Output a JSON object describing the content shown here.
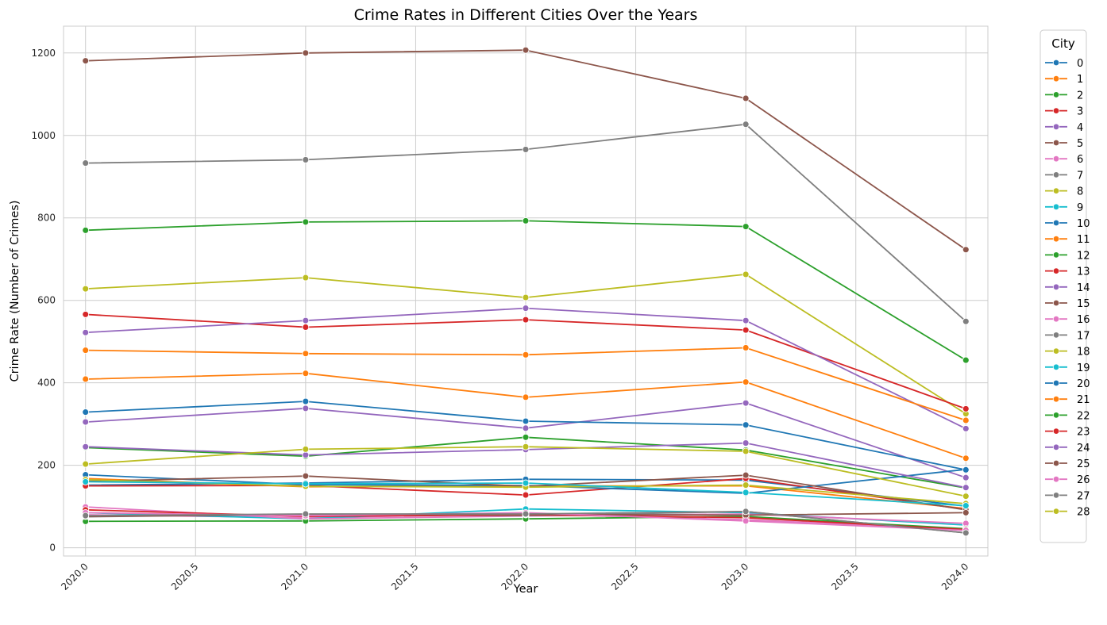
{
  "chart_data": {
    "type": "line",
    "title": "Crime Rates in Different Cities Over the Years",
    "xlabel": "Year",
    "ylabel": "Crime Rate (Number of Crimes)",
    "x": [
      2020,
      2021,
      2022,
      2023,
      2024
    ],
    "xlim": [
      2019.9,
      2024.1
    ],
    "ylim": [
      -20,
      1265
    ],
    "xticks": [
      2020.0,
      2020.5,
      2021.0,
      2021.5,
      2022.0,
      2022.5,
      2023.0,
      2023.5,
      2024.0
    ],
    "xtick_labels": [
      "2020.0",
      "2020.5",
      "2021.0",
      "2021.5",
      "2022.0",
      "2022.5",
      "2023.0",
      "2023.5",
      "2024.0"
    ],
    "yticks": [
      0,
      200,
      400,
      600,
      800,
      1000,
      1200
    ],
    "ytick_labels": [
      "0",
      "200",
      "400",
      "600",
      "800",
      "1000",
      "1200"
    ],
    "grid": true,
    "legend": {
      "title": "City",
      "placement": "outside-right"
    },
    "series": [
      {
        "name": "0",
        "color": "#1f77b4",
        "values": [
          152,
          157,
          166,
          164,
          101
        ]
      },
      {
        "name": "1",
        "color": "#ff7f0e",
        "values": [
          168,
          148,
          150,
          150,
          95
        ]
      },
      {
        "name": "2",
        "color": "#2ca02c",
        "values": [
          243,
          222,
          268,
          237,
          145
        ]
      },
      {
        "name": "3",
        "color": "#d62728",
        "values": [
          150,
          151,
          128,
          168,
          93
        ]
      },
      {
        "name": "4",
        "color": "#9467bd",
        "values": [
          305,
          338,
          290,
          351,
          170
        ]
      },
      {
        "name": "5",
        "color": "#8c564b",
        "values": [
          1181,
          1200,
          1207,
          1090,
          723
        ]
      },
      {
        "name": "6",
        "color": "#e377c2",
        "values": [
          80,
          73,
          82,
          68,
          45
        ]
      },
      {
        "name": "7",
        "color": "#7f7f7f",
        "values": [
          933,
          941,
          966,
          1027,
          549
        ]
      },
      {
        "name": "8",
        "color": "#bcbd22",
        "values": [
          628,
          655,
          607,
          663,
          325
        ]
      },
      {
        "name": "9",
        "color": "#17becf",
        "values": [
          85,
          70,
          94,
          85,
          55
        ]
      },
      {
        "name": "10",
        "color": "#1f77b4",
        "values": [
          177,
          153,
          151,
          132,
          190
        ]
      },
      {
        "name": "11",
        "color": "#ff7f0e",
        "values": [
          409,
          423,
          365,
          402,
          217
        ]
      },
      {
        "name": "12",
        "color": "#2ca02c",
        "values": [
          770,
          790,
          793,
          779,
          455
        ]
      },
      {
        "name": "13",
        "color": "#d62728",
        "values": [
          566,
          535,
          553,
          528,
          337
        ]
      },
      {
        "name": "14",
        "color": "#9467bd",
        "values": [
          522,
          551,
          581,
          551,
          289
        ]
      },
      {
        "name": "15",
        "color": "#8c564b",
        "values": [
          161,
          174,
          149,
          176,
          92
        ]
      },
      {
        "name": "16",
        "color": "#e377c2",
        "values": [
          99,
          70,
          77,
          82,
          59
        ]
      },
      {
        "name": "17",
        "color": "#7f7f7f",
        "values": [
          75,
          81,
          78,
          88,
          36
        ]
      },
      {
        "name": "18",
        "color": "#bcbd22",
        "values": [
          165,
          149,
          147,
          152,
          107
        ]
      },
      {
        "name": "19",
        "color": "#17becf",
        "values": [
          160,
          155,
          157,
          134,
          102
        ]
      },
      {
        "name": "20",
        "color": "#1f77b4",
        "values": [
          329,
          355,
          307,
          298,
          189
        ]
      },
      {
        "name": "21",
        "color": "#ff7f0e",
        "values": [
          479,
          471,
          468,
          485,
          309
        ]
      },
      {
        "name": "22",
        "color": "#2ca02c",
        "values": [
          64,
          65,
          70,
          76,
          46
        ]
      },
      {
        "name": "23",
        "color": "#d62728",
        "values": [
          92,
          76,
          80,
          73,
          44
        ]
      },
      {
        "name": "24",
        "color": "#9467bd",
        "values": [
          245,
          225,
          238,
          254,
          146
        ]
      },
      {
        "name": "25",
        "color": "#8c564b",
        "values": [
          76,
          81,
          81,
          79,
          85
        ]
      },
      {
        "name": "26",
        "color": "#e377c2",
        "values": [
          85,
          78,
          85,
          65,
          42
        ]
      },
      {
        "name": "27",
        "color": "#7f7f7f",
        "values": [
          78,
          82,
          82,
          88,
          36
        ]
      },
      {
        "name": "28",
        "color": "#bcbd22",
        "values": [
          203,
          239,
          245,
          234,
          125
        ]
      }
    ]
  }
}
